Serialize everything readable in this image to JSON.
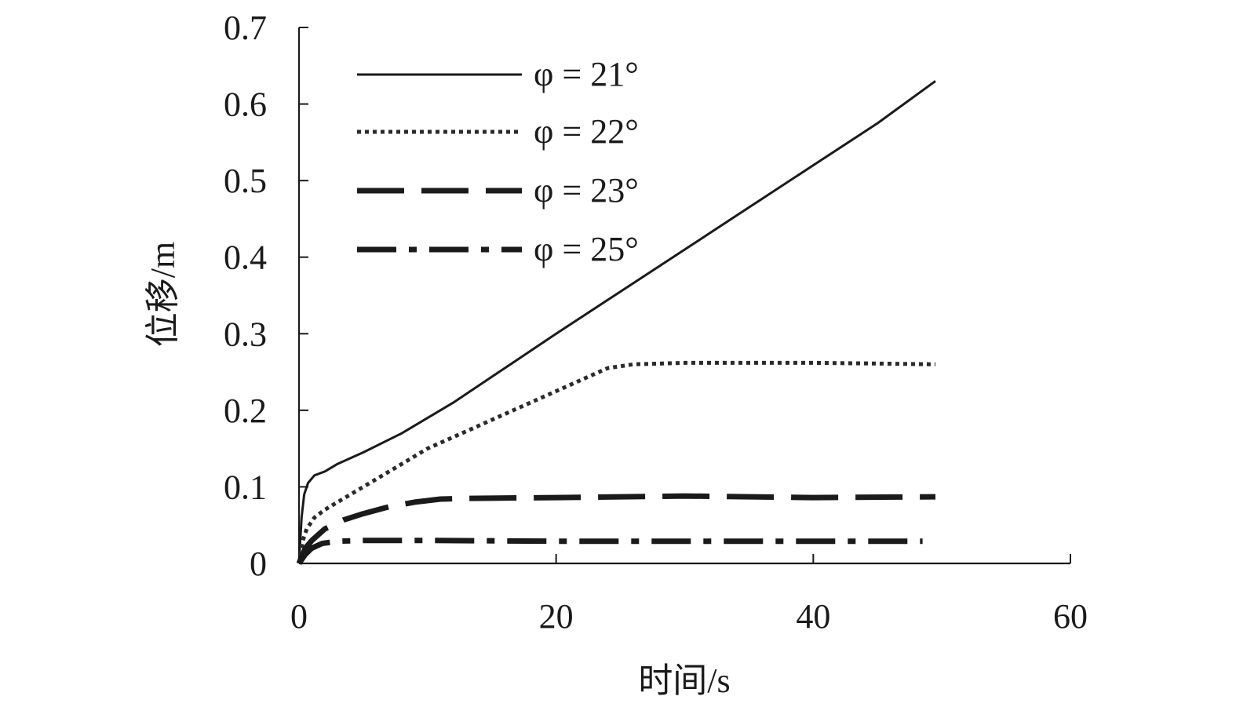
{
  "chart_data": {
    "type": "line",
    "xlabel": "时间/s",
    "ylabel": "位移/m",
    "xlim": [
      0,
      60
    ],
    "ylim": [
      0,
      0.7
    ],
    "xticks": [
      0,
      20,
      40,
      60
    ],
    "yticks": [
      0,
      0.1,
      0.2,
      0.3,
      0.4,
      0.5,
      0.6,
      0.7
    ],
    "xtick_labels": [
      "0",
      "20",
      "40",
      "60"
    ],
    "ytick_labels": [
      "0",
      "0.1",
      "0.2",
      "0.3",
      "0.4",
      "0.5",
      "0.6",
      "0.7"
    ],
    "grid": false,
    "legend_position": "top-left",
    "series": [
      {
        "name": "φ = 21°",
        "style": "solid",
        "color": "#1a1a1a",
        "points": [
          [
            0,
            0
          ],
          [
            0.2,
            0.06
          ],
          [
            0.4,
            0.09
          ],
          [
            0.7,
            0.105
          ],
          [
            1.2,
            0.115
          ],
          [
            2,
            0.12
          ],
          [
            3,
            0.13
          ],
          [
            5,
            0.145
          ],
          [
            8,
            0.17
          ],
          [
            12,
            0.21
          ],
          [
            16,
            0.255
          ],
          [
            20,
            0.3
          ],
          [
            25,
            0.355
          ],
          [
            30,
            0.41
          ],
          [
            35,
            0.465
          ],
          [
            40,
            0.52
          ],
          [
            45,
            0.575
          ],
          [
            49.5,
            0.63
          ]
        ]
      },
      {
        "name": "φ = 22°",
        "style": "dotted",
        "color": "#2a2a2a",
        "points": [
          [
            0,
            0
          ],
          [
            0.3,
            0.03
          ],
          [
            0.6,
            0.045
          ],
          [
            1.2,
            0.06
          ],
          [
            2,
            0.07
          ],
          [
            3,
            0.08
          ],
          [
            4,
            0.09
          ],
          [
            6,
            0.11
          ],
          [
            8,
            0.13
          ],
          [
            10,
            0.15
          ],
          [
            12,
            0.165
          ],
          [
            14,
            0.18
          ],
          [
            16,
            0.195
          ],
          [
            18,
            0.21
          ],
          [
            20,
            0.225
          ],
          [
            22,
            0.24
          ],
          [
            24,
            0.255
          ],
          [
            26,
            0.26
          ],
          [
            30,
            0.262
          ],
          [
            35,
            0.262
          ],
          [
            40,
            0.262
          ],
          [
            45,
            0.261
          ],
          [
            49.5,
            0.26
          ]
        ]
      },
      {
        "name": "φ = 23°",
        "style": "dashed",
        "color": "#1a1a1a",
        "points": [
          [
            0,
            0
          ],
          [
            0.5,
            0.02
          ],
          [
            1,
            0.03
          ],
          [
            2,
            0.045
          ],
          [
            3.5,
            0.057
          ],
          [
            5,
            0.065
          ],
          [
            7,
            0.074
          ],
          [
            9,
            0.08
          ],
          [
            11,
            0.084
          ],
          [
            13,
            0.085
          ],
          [
            20,
            0.086
          ],
          [
            30,
            0.088
          ],
          [
            40,
            0.086
          ],
          [
            49.5,
            0.087
          ]
        ]
      },
      {
        "name": "φ = 25°",
        "style": "dashdot",
        "color": "#1a1a1a",
        "points": [
          [
            0,
            0
          ],
          [
            0.5,
            0.012
          ],
          [
            1,
            0.02
          ],
          [
            1.8,
            0.026
          ],
          [
            3,
            0.029
          ],
          [
            5,
            0.03
          ],
          [
            10,
            0.03
          ],
          [
            20,
            0.029
          ],
          [
            30,
            0.029
          ],
          [
            40,
            0.029
          ],
          [
            48.5,
            0.029
          ]
        ]
      }
    ]
  }
}
